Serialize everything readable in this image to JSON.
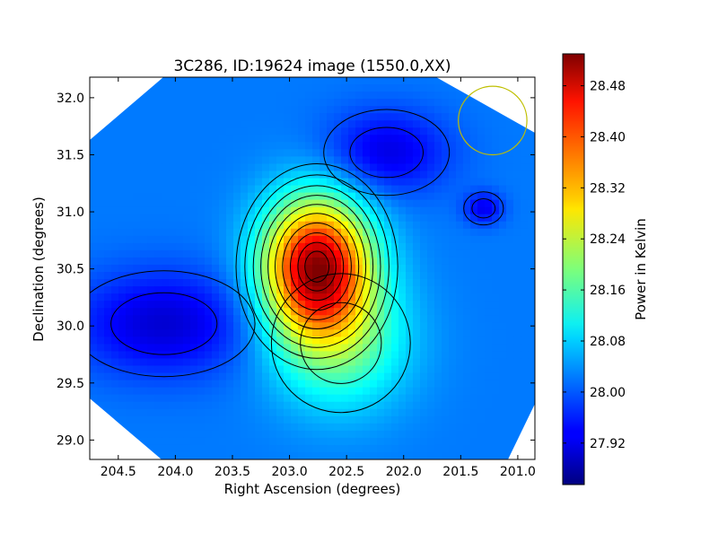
{
  "chart_data": {
    "type": "heatmap",
    "title": "3C286, ID:19624 image (1550.0,XX)",
    "xlabel": "Right Ascension (degrees)",
    "ylabel": "Declination (degrees)",
    "xlim": [
      204.75,
      200.85
    ],
    "ylim": [
      28.83,
      32.18
    ],
    "x_inverted": true,
    "x_ticks": [
      "204.5",
      "204.0",
      "203.5",
      "203.0",
      "202.5",
      "202.0",
      "201.5",
      "201.0"
    ],
    "x_tick_values": [
      204.5,
      204.0,
      203.5,
      203.0,
      202.5,
      202.0,
      201.5,
      201.0
    ],
    "y_ticks": [
      "29.0",
      "29.5",
      "30.0",
      "30.5",
      "31.0",
      "31.5",
      "32.0"
    ],
    "y_tick_values": [
      29.0,
      29.5,
      30.0,
      30.5,
      31.0,
      31.5,
      32.0
    ],
    "colorbar": {
      "label": "Power in Kelvin",
      "min": 27.855,
      "max": 28.53,
      "ticks": [
        "27.92",
        "28.00",
        "28.08",
        "28.16",
        "28.24",
        "28.32",
        "28.40",
        "28.48"
      ],
      "tick_values": [
        27.92,
        28.0,
        28.08,
        28.16,
        28.24,
        28.32,
        28.4,
        28.48
      ],
      "colormap": "jet"
    },
    "background_level": 28.02,
    "features": [
      {
        "kind": "peak",
        "ra": 202.76,
        "dec": 30.52,
        "value": 28.5,
        "ra_sigma": 0.33,
        "dec_sigma": 0.42
      },
      {
        "kind": "shoulder",
        "ra": 202.55,
        "dec": 29.85,
        "value": 28.16,
        "ra_sigma": 0.42,
        "dec_sigma": 0.42
      },
      {
        "kind": "trough",
        "ra": 204.1,
        "dec": 30.02,
        "value": 27.91,
        "ra_sigma": 0.55,
        "dec_sigma": 0.32
      },
      {
        "kind": "trough",
        "ra": 202.15,
        "dec": 31.52,
        "value": 27.92,
        "ra_sigma": 0.38,
        "dec_sigma": 0.26
      },
      {
        "kind": "trough",
        "ra": 201.3,
        "dec": 31.03,
        "value": 27.93,
        "ra_sigma": 0.12,
        "dec_sigma": 0.1
      }
    ],
    "beam_circle": {
      "ra": 201.22,
      "dec": 31.8,
      "radius_deg": 0.3,
      "color": "#bfbf00"
    },
    "contour_color": "#000000",
    "grid": false
  },
  "colors": {
    "frame": "#000000",
    "beam": "#bfbf00"
  }
}
